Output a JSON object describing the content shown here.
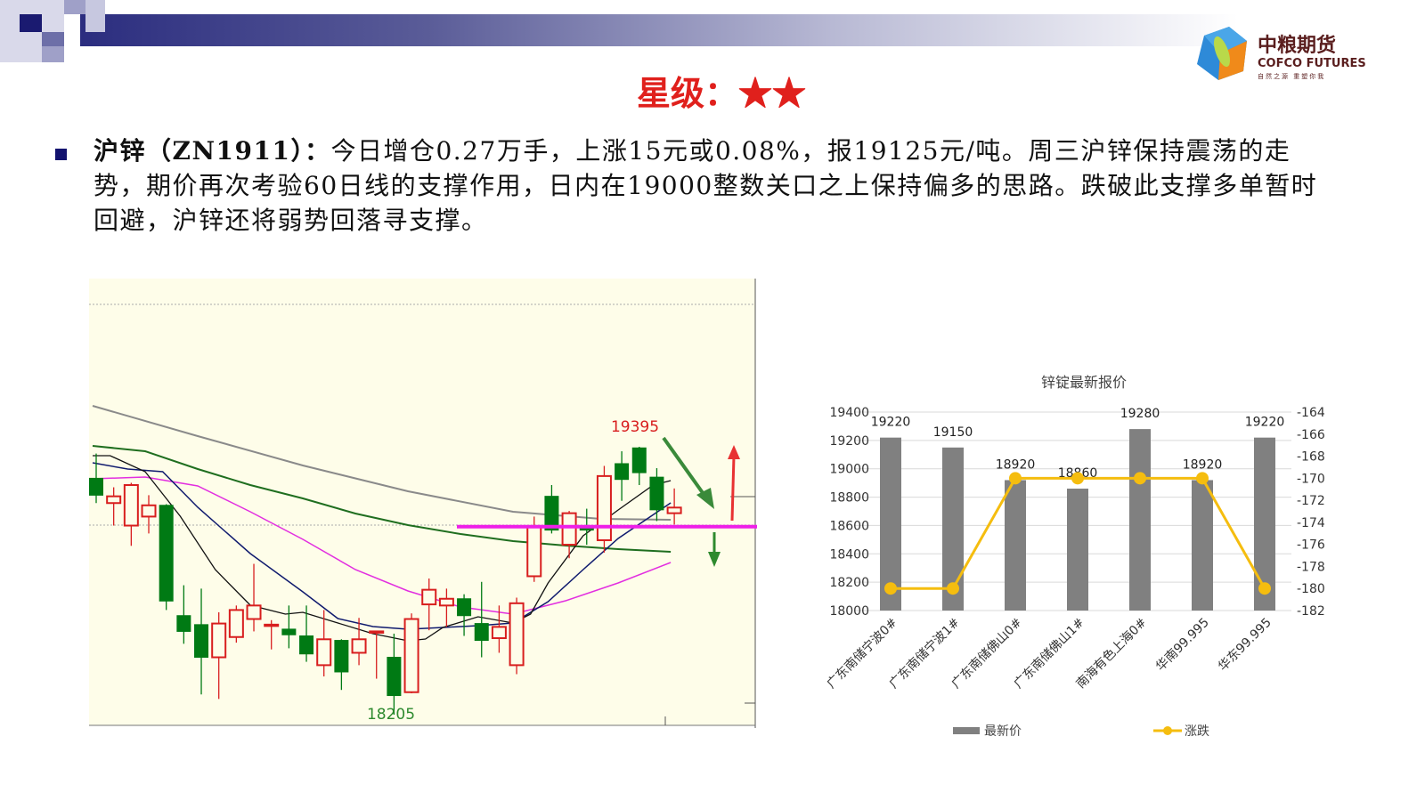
{
  "header": {
    "rating_label": "星级：",
    "rating_stars": "★★",
    "logo": {
      "cn": "中粮期货",
      "en": "COFCO FUTURES",
      "slogan": "自然之源 重塑你我"
    }
  },
  "body": {
    "lead": "沪锌（ZN1911）：",
    "text": "今日增仓0.27万手，上涨15元或0.08%，报19125元/吨。周三沪锌保持震荡的走势，期价再次考验60日线的支撑作用，日内在19000整数关口之上保持偏多的思路。跌破此支撑多单暂时回避，沪锌还将弱势回落寻支撑。"
  },
  "chart_data": [
    {
      "type": "candlestick",
      "title": "",
      "up_color": "#d81e1e",
      "down_color": "#007a14",
      "annotations": {
        "high": "19395",
        "low": "18205"
      },
      "support_line": 19040,
      "candles": [
        [
          19255,
          19365,
          19145,
          19180
        ],
        [
          19145,
          19215,
          19045,
          19175
        ],
        [
          19045,
          19235,
          18955,
          19225
        ],
        [
          19085,
          19180,
          19010,
          19135
        ],
        [
          19135,
          19140,
          18670,
          18710
        ],
        [
          18645,
          18780,
          18520,
          18575
        ],
        [
          18605,
          18765,
          18295,
          18460
        ],
        [
          18460,
          18660,
          18275,
          18610
        ],
        [
          18550,
          18690,
          18525,
          18670
        ],
        [
          18630,
          18875,
          18575,
          18690
        ],
        [
          18600,
          18625,
          18495,
          18605
        ],
        [
          18585,
          18690,
          18500,
          18560
        ],
        [
          18555,
          18690,
          18440,
          18475
        ],
        [
          18425,
          18670,
          18375,
          18540
        ],
        [
          18535,
          18540,
          18315,
          18395
        ],
        [
          18480,
          18635,
          18425,
          18540
        ],
        [
          18570,
          18575,
          18365,
          18575
        ],
        [
          18460,
          18565,
          18205,
          18290
        ],
        [
          18305,
          18655,
          18300,
          18630
        ],
        [
          18695,
          18810,
          18580,
          18760
        ],
        [
          18690,
          18765,
          18595,
          18720
        ],
        [
          18720,
          18740,
          18555,
          18645
        ],
        [
          18610,
          18795,
          18460,
          18535
        ],
        [
          18545,
          18690,
          18480,
          18595
        ],
        [
          18425,
          18725,
          18385,
          18700
        ],
        [
          18820,
          19085,
          18795,
          19040
        ],
        [
          19175,
          19225,
          19010,
          19025
        ],
        [
          18960,
          19110,
          18900,
          19100
        ],
        [
          19040,
          19120,
          18960,
          19025
        ],
        [
          18980,
          19310,
          18925,
          19265
        ],
        [
          19320,
          19375,
          19155,
          19250
        ],
        [
          19390,
          19395,
          19225,
          19280
        ],
        [
          19260,
          19300,
          19065,
          19115
        ],
        [
          19100,
          19210,
          19050,
          19125
        ]
      ]
    },
    {
      "type": "bar+line",
      "title": "锌锭最新报价",
      "categories": [
        "广东南储宁波0#",
        "广东南储宁波1#",
        "广东南储佛山0#",
        "广东南储佛山1#",
        "南海有色上海0#",
        "华南99.995",
        "华东99.995"
      ],
      "series": [
        {
          "name": "最新价",
          "type": "bar",
          "axis": "left",
          "color": "#808080",
          "values": [
            19220,
            19150,
            18920,
            18860,
            19280,
            18920,
            19220
          ]
        },
        {
          "name": "涨跌",
          "type": "line",
          "axis": "right",
          "color": "#f5bd0f",
          "values": [
            -180,
            -180,
            -170,
            -170,
            -170,
            -170,
            -180
          ]
        }
      ],
      "ylim_left": [
        18000,
        19400
      ],
      "yticks_left": [
        "19400",
        "19200",
        "19000",
        "18800",
        "18600",
        "18400",
        "18200",
        "18000"
      ],
      "ylim_right": [
        -182,
        -164
      ],
      "yticks_right": [
        "-164",
        "-166",
        "-168",
        "-170",
        "-172",
        "-174",
        "-176",
        "-178",
        "-180",
        "-182"
      ],
      "grid": true,
      "legend": "bottom"
    }
  ]
}
